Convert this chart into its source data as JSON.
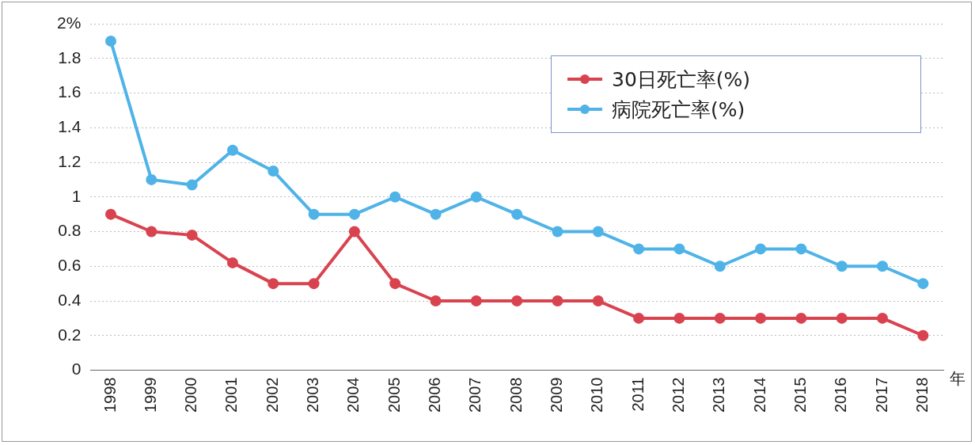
{
  "chart_data": {
    "type": "line",
    "xlabel": "年",
    "categories": [
      "1998",
      "1999",
      "2000",
      "2001",
      "2002",
      "2003",
      "2004",
      "2005",
      "2006",
      "2007",
      "2008",
      "2009",
      "2010",
      "2011",
      "2012",
      "2013",
      "2014",
      "2015",
      "2016",
      "2017",
      "2018"
    ],
    "series": [
      {
        "name": "30日死亡率(%)",
        "color": "#d9434f",
        "values": [
          0.9,
          0.8,
          0.78,
          0.62,
          0.5,
          0.5,
          0.8,
          0.5,
          0.4,
          0.4,
          0.4,
          0.4,
          0.4,
          0.3,
          0.3,
          0.3,
          0.3,
          0.3,
          0.3,
          0.3,
          0.2
        ]
      },
      {
        "name": "病院死亡率(%)",
        "color": "#4fb3e8",
        "values": [
          1.9,
          1.1,
          1.07,
          1.27,
          1.15,
          0.9,
          0.9,
          1.0,
          0.9,
          1.0,
          0.9,
          0.8,
          0.8,
          0.7,
          0.7,
          0.6,
          0.7,
          0.7,
          0.6,
          0.6,
          0.5
        ]
      }
    ],
    "ylim": [
      0,
      2
    ],
    "yticks": [
      0,
      0.2,
      0.4,
      0.6,
      0.8,
      1,
      1.2,
      1.4,
      1.6,
      1.8,
      {
        "value": 2,
        "label": "2%"
      }
    ],
    "grid": "y",
    "legend": "top right",
    "marker": "circle",
    "line_style": "solid"
  }
}
